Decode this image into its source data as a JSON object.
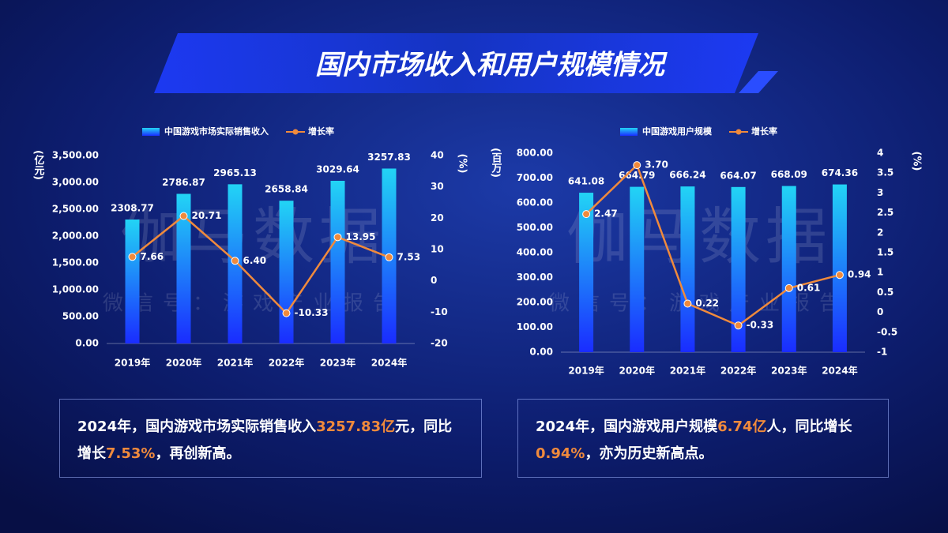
{
  "title": "国内市场收入和用户规模情况",
  "watermark": {
    "logo": "伽马数据",
    "account": "微信号：游戏产业报告"
  },
  "chart_data": [
    {
      "type": "combo",
      "categories": [
        "2019年",
        "2020年",
        "2021年",
        "2022年",
        "2023年",
        "2024年"
      ],
      "series": [
        {
          "name": "中国游戏市场实际销售收入",
          "type": "bar",
          "color": "#22d4f5",
          "values": [
            2308.77,
            2786.87,
            2965.13,
            2658.84,
            3029.64,
            3257.83
          ]
        },
        {
          "name": "增长率",
          "type": "line",
          "axis": "y2",
          "color": "#f08a3c",
          "values": [
            7.66,
            20.71,
            6.4,
            -10.33,
            13.95,
            7.53
          ],
          "value_labels": [
            "7.66",
            "20.71",
            "6.40",
            "-10.33",
            "13.95",
            "7.53"
          ]
        }
      ],
      "ylabel": "(亿元)",
      "y2label": "(%)",
      "ylim": [
        0,
        3500
      ],
      "yticks": [
        {
          "value": 0,
          "label": "0.00"
        },
        {
          "value": 500,
          "label": "500.00"
        },
        {
          "value": 1000,
          "label": "1,000.00"
        },
        {
          "value": 1500,
          "label": "1,500.00"
        },
        {
          "value": 2000,
          "label": "2,000.00"
        },
        {
          "value": 2500,
          "label": "2,500.00"
        },
        {
          "value": 3000,
          "label": "3,000.00"
        },
        {
          "value": 3500,
          "label": "3,500.00"
        }
      ],
      "y2lim": [
        -20,
        40
      ],
      "y2ticks": [
        -20,
        -10,
        0,
        10,
        20,
        30,
        40
      ]
    },
    {
      "type": "combo",
      "categories": [
        "2019年",
        "2020年",
        "2021年",
        "2022年",
        "2023年",
        "2024年"
      ],
      "series": [
        {
          "name": "中国游戏用户规模",
          "type": "bar",
          "color": "#22d4f5",
          "values": [
            641.08,
            664.79,
            666.24,
            664.07,
            668.09,
            674.36
          ]
        },
        {
          "name": "增长率",
          "type": "line",
          "axis": "y2",
          "color": "#f08a3c",
          "values": [
            2.47,
            3.7,
            0.22,
            -0.33,
            0.61,
            0.94
          ],
          "value_labels": [
            "2.47",
            "3.70",
            "0.22",
            "-0.33",
            "0.61",
            "0.94"
          ]
        }
      ],
      "ylabel": "(百万)",
      "y2label": "(%)",
      "ylim": [
        0,
        800
      ],
      "yticks": [
        {
          "value": 0,
          "label": "0.00"
        },
        {
          "value": 100,
          "label": "100.00"
        },
        {
          "value": 200,
          "label": "200.00"
        },
        {
          "value": 300,
          "label": "300.00"
        },
        {
          "value": 400,
          "label": "400.00"
        },
        {
          "value": 500,
          "label": "500.00"
        },
        {
          "value": 600,
          "label": "600.00"
        },
        {
          "value": 700,
          "label": "700.00"
        },
        {
          "value": 800,
          "label": "800.00"
        }
      ],
      "y2lim": [
        -1,
        4
      ],
      "y2ticks": [
        -1,
        -0.5,
        0,
        0.5,
        1,
        1.5,
        2,
        2.5,
        3,
        3.5,
        4
      ]
    }
  ],
  "captions": [
    [
      {
        "text": "2024年，国内游戏市场实际销售收入",
        "highlight": false
      },
      {
        "text": "3257.83亿",
        "highlight": true
      },
      {
        "text": "元，同比增长",
        "highlight": false
      },
      {
        "text": "7.53%",
        "highlight": true
      },
      {
        "text": "，再创新高。",
        "highlight": false
      }
    ],
    [
      {
        "text": "2024年，国内游戏用户规模",
        "highlight": false
      },
      {
        "text": "6.74亿",
        "highlight": true
      },
      {
        "text": "人，同比增长",
        "highlight": false
      },
      {
        "text": "0.94%",
        "highlight": true
      },
      {
        "text": "，亦为历史新高点。",
        "highlight": false
      }
    ]
  ]
}
